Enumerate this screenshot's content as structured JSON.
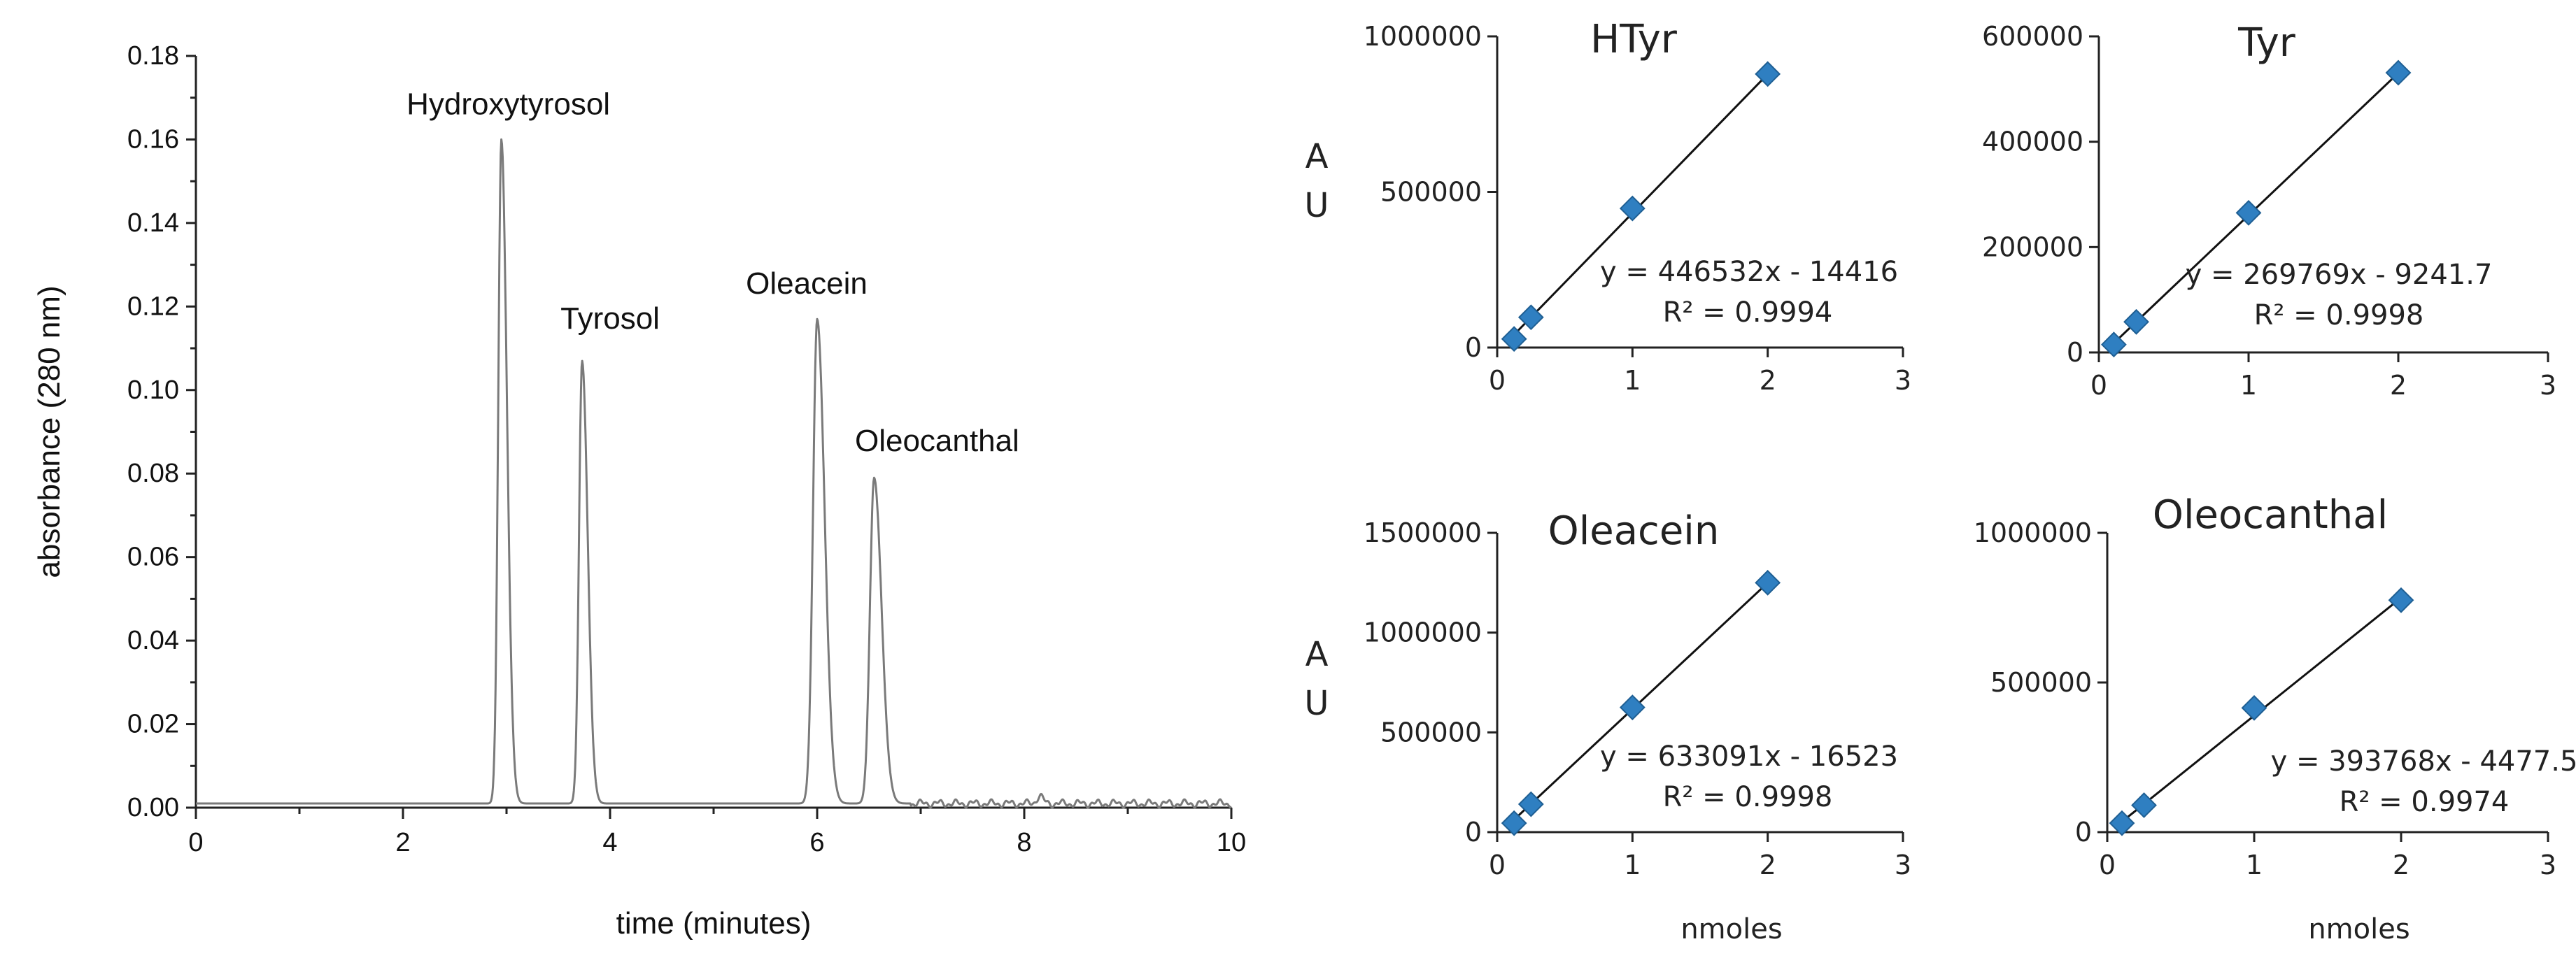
{
  "chart_data": [
    {
      "id": "chromatogram",
      "type": "line",
      "title": "",
      "xlabel": "time (minutes)",
      "ylabel": "absorbance (280 nm)",
      "xlim": [
        0,
        10
      ],
      "ylim": [
        0,
        0.18
      ],
      "x_ticks": [
        "0",
        "2",
        "4",
        "6",
        "8",
        "10"
      ],
      "y_ticks": [
        "0.00",
        "0.02",
        "0.04",
        "0.06",
        "0.08",
        "0.10",
        "0.12",
        "0.14",
        "0.16",
        "0.18"
      ],
      "peaks": [
        {
          "name": "Hydroxytyrosol",
          "x": 2.95,
          "height": 0.159,
          "width": 0.03
        },
        {
          "name": "Tyrosol",
          "x": 3.73,
          "height": 0.106,
          "width": 0.03
        },
        {
          "name": "Oleacein",
          "x": 6.0,
          "height": 0.116,
          "width": 0.04
        },
        {
          "name": "Oleocanthal",
          "x": 6.55,
          "height": 0.078,
          "width": 0.04
        }
      ],
      "baseline": 0.001
    },
    {
      "id": "cal-htyr",
      "type": "scatter",
      "title": "HTyr",
      "xlabel": "",
      "ylabel": "A\nU",
      "xlim": [
        0,
        3
      ],
      "ylim": [
        0,
        1000000
      ],
      "x_ticks": [
        "0",
        "1",
        "2",
        "3"
      ],
      "y_ticks": [
        "0",
        "500000",
        "1000000"
      ],
      "points": [
        [
          0.125,
          27600
        ],
        [
          0.25,
          97200
        ],
        [
          1,
          447000
        ],
        [
          2,
          879000
        ]
      ],
      "fit": {
        "slope": 446532,
        "intercept": -14416
      },
      "equation": "y = 446532x - 14416",
      "r2": "R² = 0.9994"
    },
    {
      "id": "cal-tyr",
      "type": "scatter",
      "title": "Tyr",
      "xlabel": "",
      "ylabel": "",
      "xlim": [
        0,
        3
      ],
      "ylim": [
        0,
        600000
      ],
      "x_ticks": [
        "0",
        "1",
        "2",
        "3"
      ],
      "y_ticks": [
        "0",
        "200000",
        "400000",
        "600000"
      ],
      "points": [
        [
          0.1,
          15000
        ],
        [
          0.25,
          58000
        ],
        [
          1,
          265000
        ],
        [
          2,
          531000
        ]
      ],
      "fit": {
        "slope": 269769,
        "intercept": -9241.7
      },
      "equation": "y = 269769x - 9241.7",
      "r2": "R² = 0.9998"
    },
    {
      "id": "cal-oleacein",
      "type": "scatter",
      "title": "Oleacein",
      "xlabel": "nmoles",
      "ylabel": "A\nU",
      "xlim": [
        0,
        3
      ],
      "ylim": [
        0,
        1500000
      ],
      "x_ticks": [
        "0",
        "1",
        "2",
        "3"
      ],
      "y_ticks": [
        "0",
        "500000",
        "1000000",
        "1500000"
      ],
      "points": [
        [
          0.125,
          45000
        ],
        [
          0.25,
          140000
        ],
        [
          1,
          625000
        ],
        [
          2,
          1250000
        ]
      ],
      "fit": {
        "slope": 633091,
        "intercept": -16523
      },
      "equation": "y = 633091x - 16523",
      "r2": "R² = 0.9998"
    },
    {
      "id": "cal-oleocanthal",
      "type": "scatter",
      "title": "Oleocanthal",
      "xlabel": "nmoles",
      "ylabel": "",
      "xlim": [
        0,
        3
      ],
      "ylim": [
        0,
        1000000
      ],
      "x_ticks": [
        "0",
        "1",
        "2",
        "3"
      ],
      "y_ticks": [
        "0",
        "500000",
        "1000000"
      ],
      "points": [
        [
          0.1,
          30000
        ],
        [
          0.25,
          90000
        ],
        [
          1,
          415000
        ],
        [
          2,
          775000
        ]
      ],
      "fit": {
        "slope": 393768,
        "intercept": -4477.5
      },
      "equation": "y = 393768x - 4477.5",
      "r2": "R² = 0.9974"
    }
  ]
}
